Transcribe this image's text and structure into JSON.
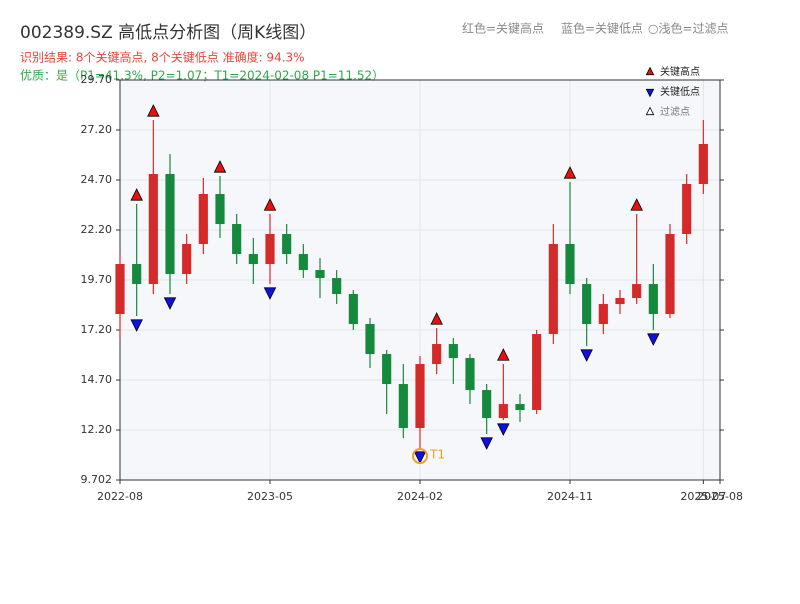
{
  "chart_data": {
    "type": "candlestick",
    "title": "002389.SZ 高低点分析图（周K线图）",
    "header_legend": [
      "红色=关键高点",
      "蓝色=关键低点",
      "○浅色=过滤点"
    ],
    "subtitle_lines": [
      "识别结果: 8个关键高点, 8个关键低点  准确度: 94.3%",
      "优质：是（P1=41.3%, P2=1.07；T1=2024-02-08 P1=11.52）"
    ],
    "subtitle_colors": [
      "#e8463c",
      "#2eaa4a"
    ],
    "x": [
      "2022-08",
      "2022-09",
      "2022-10",
      "2022-11",
      "2022-12",
      "2023-01",
      "2023-02",
      "2023-03",
      "2023-04",
      "2023-05",
      "2023-06",
      "2023-07",
      "2023-08",
      "2023-09",
      "2023-10",
      "2023-11",
      "2023-12",
      "2024-01",
      "2024-02",
      "2024-03",
      "2024-04",
      "2024-05",
      "2024-06",
      "2024-07",
      "2024-08",
      "2024-09",
      "2024-10",
      "2024-11",
      "2024-12",
      "2025-01",
      "2025-02",
      "2025-03",
      "2025-04",
      "2025-05",
      "2025-06",
      "2025-07"
    ],
    "open": [
      18.0,
      20.5,
      19.5,
      25.0,
      20.0,
      21.5,
      24.0,
      22.5,
      21.0,
      20.5,
      22.0,
      21.0,
      20.2,
      19.8,
      19.0,
      17.5,
      16.0,
      14.5,
      12.3,
      15.5,
      16.5,
      15.8,
      14.2,
      12.8,
      13.5,
      13.2,
      17.0,
      21.5,
      19.5,
      17.5,
      18.5,
      18.8,
      19.5,
      18.0,
      22.0,
      24.5
    ],
    "high": [
      21.0,
      23.5,
      27.7,
      26.0,
      22.0,
      24.8,
      24.9,
      23.0,
      21.8,
      23.0,
      22.5,
      21.5,
      20.8,
      20.2,
      19.2,
      17.8,
      16.2,
      15.5,
      15.9,
      17.3,
      16.8,
      16.0,
      14.5,
      15.5,
      14.0,
      17.2,
      22.5,
      24.6,
      19.8,
      19.0,
      19.2,
      23.0,
      20.5,
      22.5,
      25.0,
      27.7
    ],
    "low": [
      16.8,
      17.9,
      19.0,
      19.0,
      19.5,
      21.0,
      21.8,
      20.5,
      19.5,
      19.5,
      20.5,
      19.8,
      18.8,
      18.5,
      17.2,
      15.3,
      13.0,
      11.8,
      11.3,
      15.0,
      14.5,
      13.5,
      12.0,
      12.7,
      12.6,
      13.0,
      16.5,
      19.0,
      16.4,
      17.0,
      18.0,
      18.5,
      17.2,
      17.8,
      21.5,
      24.0
    ],
    "close": [
      20.5,
      19.5,
      25.0,
      20.0,
      21.5,
      24.0,
      22.5,
      21.0,
      20.5,
      22.0,
      21.0,
      20.2,
      19.8,
      19.0,
      17.5,
      16.0,
      14.5,
      12.3,
      15.5,
      16.5,
      15.8,
      14.2,
      12.8,
      13.5,
      13.2,
      17.0,
      21.5,
      19.5,
      17.5,
      18.5,
      18.8,
      19.5,
      18.0,
      22.0,
      24.5,
      26.5
    ],
    "up_color": "#d42a2a",
    "down_color": "#168a3c",
    "xlim": [
      "2022-08",
      "2025-08"
    ],
    "xticks": [
      "2022-08",
      "2023-05",
      "2024-02",
      "2024-11",
      "2025-07",
      "2025-08"
    ],
    "ylim": [
      9.702,
      29.7
    ],
    "yticks": [
      9.702,
      {
        "value": 12.2,
        "label": "12.20"
      },
      {
        "value": 14.7,
        "label": "14.70"
      },
      {
        "value": 17.2,
        "label": "17.20"
      },
      {
        "value": 19.7,
        "label": "19.70"
      },
      {
        "value": 22.2,
        "label": "22.20"
      },
      {
        "value": 24.7,
        "label": "24.70"
      },
      {
        "value": 27.2,
        "label": "27.20"
      },
      {
        "value": 29.7,
        "label": "29.70"
      }
    ],
    "grid": true,
    "markers": [
      {
        "name": "关键高点",
        "color": "#e81010",
        "shape": "up",
        "x": [
          "2022-09",
          "2022-10",
          "2023-02",
          "2023-05",
          "2024-03",
          "2024-07",
          "2024-11",
          "2025-03"
        ],
        "values": [
          23.5,
          27.7,
          24.9,
          23.0,
          17.3,
          15.5,
          24.6,
          23.0
        ]
      },
      {
        "name": "关键低点",
        "color": "#1010e0",
        "shape": "down",
        "x": [
          "2022-09",
          "2022-11",
          "2023-05",
          "2024-02",
          "2024-06",
          "2024-07",
          "2024-12",
          "2025-04"
        ],
        "values": [
          17.9,
          19.0,
          19.5,
          11.3,
          12.0,
          12.7,
          16.4,
          17.2
        ]
      },
      {
        "name": "过滤点",
        "color": "#ffffff",
        "shape": "up",
        "x": [],
        "values": []
      }
    ],
    "annotation": {
      "text": "T1",
      "x": "2024-02",
      "value": 11.3,
      "color": "#f0a020"
    }
  }
}
